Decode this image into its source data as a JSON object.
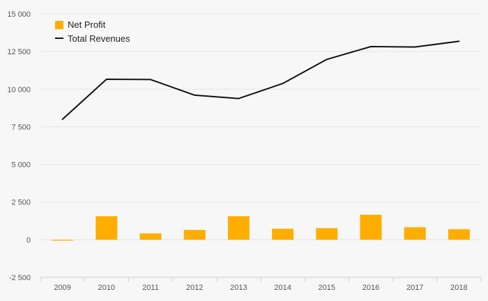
{
  "chart_data": {
    "type": "bar",
    "categories": [
      "2009",
      "2010",
      "2011",
      "2012",
      "2013",
      "2014",
      "2015",
      "2016",
      "2017",
      "2018"
    ],
    "series": [
      {
        "name": "Net Profit",
        "kind": "bar",
        "color": "#FFAE00",
        "values": [
          -60,
          1560,
          420,
          650,
          1560,
          730,
          770,
          1660,
          830,
          700
        ]
      },
      {
        "name": "Total Revenues",
        "kind": "line",
        "color": "#111111",
        "values": [
          8000,
          10660,
          10640,
          9600,
          9380,
          10380,
          11980,
          12830,
          12800,
          13180
        ]
      }
    ],
    "y_ticks": [
      "-2 500",
      "0",
      "2 500",
      "5 000",
      "7 500",
      "10 000",
      "12 500",
      "15 000"
    ],
    "ylim": [
      -2500,
      15000
    ],
    "grid": true,
    "legend_position": "top-left"
  }
}
